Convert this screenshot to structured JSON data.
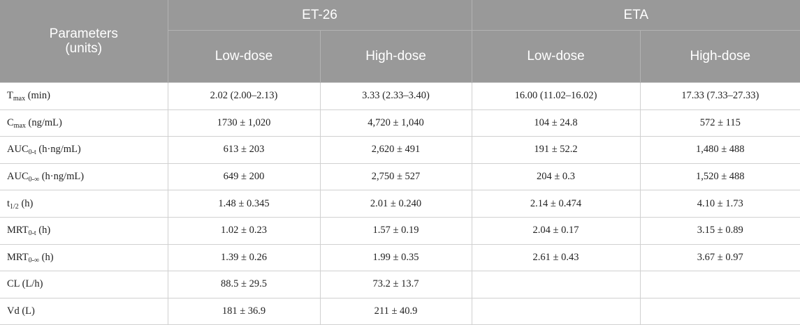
{
  "header": {
    "group1": "ET-26",
    "group2": "ETA",
    "param_line1": "Parameters",
    "param_line2": "(units)",
    "col1": "Low-dose",
    "col2": "High-dose",
    "col3": "Low-dose",
    "col4": "High-dose"
  },
  "rows": [
    {
      "main": "T",
      "sub": "max",
      "unit": " (min)",
      "v1": "2.02 (2.00–2.13)",
      "v2": "3.33 (2.33–3.40)",
      "v3": "16.00 (11.02–16.02)",
      "v4": "17.33 (7.33–27.33)"
    },
    {
      "main": "C",
      "sub": "max",
      "unit": " (ng/mL)",
      "v1": "1730 ± 1,020",
      "v2": "4,720 ± 1,040",
      "v3": "104 ± 24.8",
      "v4": "572 ± 115"
    },
    {
      "main": "AUC",
      "sub": "0-t",
      "unit": " (h·ng/mL)",
      "v1": "613 ± 203",
      "v2": "2,620 ± 491",
      "v3": "191 ± 52.2",
      "v4": "1,480 ± 488"
    },
    {
      "main": "AUC",
      "sub": "0-∞",
      "unit": " (h·ng/mL)",
      "v1": "649 ± 200",
      "v2": "2,750 ± 527",
      "v3": "204 ± 0.3",
      "v4": "1,520 ± 488"
    },
    {
      "main": "t",
      "sub": "1/2",
      "unit": " (h)",
      "v1": "1.48 ± 0.345",
      "v2": "2.01 ± 0.240",
      "v3": "2.14 ± 0.474",
      "v4": "4.10 ± 1.73"
    },
    {
      "main": "MRT",
      "sub": "0-t",
      "unit": " (h)",
      "v1": "1.02 ± 0.23",
      "v2": "1.57 ± 0.19",
      "v3": "2.04 ± 0.17",
      "v4": "3.15 ± 0.89"
    },
    {
      "main": "MRT",
      "sub": "0-∞",
      "unit": " (h)",
      "v1": "1.39 ± 0.26",
      "v2": "1.99 ± 0.35",
      "v3": "2.61 ± 0.43",
      "v4": "3.67 ± 0.97"
    },
    {
      "main": "CL (L/h)",
      "sub": "",
      "unit": "",
      "v1": "88.5 ± 29.5",
      "v2": "73.2 ± 13.7",
      "v3": "",
      "v4": ""
    },
    {
      "main": "Vd (L)",
      "sub": "",
      "unit": "",
      "v1": "181 ± 36.9",
      "v2": "211 ± 40.9",
      "v3": "",
      "v4": ""
    }
  ]
}
